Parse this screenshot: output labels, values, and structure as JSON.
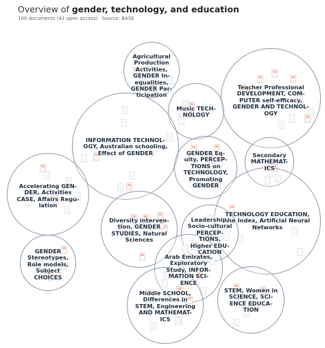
{
  "header": {
    "title_prefix": "Overview of ",
    "title_topic": "gender, technology, and education",
    "subtitle_docs": "100 documents (41 open access)",
    "subtitle_source": "Source: BASE"
  },
  "accent_colors": {
    "bubble_border": "#8a96a6",
    "label_text": "#1f2d3d",
    "open_access_marker": "#f5b8a4"
  },
  "clusters": [
    {
      "id": "agricultural",
      "label": "Agricultural\nProduction\nActivities,\nGENDER In-\nequalities,\nGENDER Par-\nticipation"
    },
    {
      "id": "teacher",
      "label": "Teacher Professional\nDEVELOPMENT, COM-\nPUTER self-efficacy,\nGENDER AND TECHNOL-\nOGY"
    },
    {
      "id": "music",
      "label": "Music TECH-\nNOLOGY"
    },
    {
      "id": "infotech",
      "label": "INFORMATION TECHNOL-\nOGY, Australian schooling,\nEffect of GENDER"
    },
    {
      "id": "gender-equity",
      "label": "GENDER Eq-\nuity, PERCEP-\nTIONS on\nTECHNOLOGY,\nPromoting\nGENDER"
    },
    {
      "id": "secondary",
      "label": "Secondary\nMATHEMAT-\nICS"
    },
    {
      "id": "accelerating",
      "label": "Accelerating GEN-\nDER, Activities\nCASE, Affairs Regu-\nlation"
    },
    {
      "id": "techedu",
      "label": "TECHNOLOGY EDUCATION,\nthe Index, Artificial Neural\nNetworks"
    },
    {
      "id": "diversity",
      "label": "Diversity interven-\ntion, GENDER\nSTUDIES, Natural\nSciences"
    },
    {
      "id": "leadership",
      "label": "Leadership,\nSocio-cultural\nPERCEP-\nTIONS,\nHigher EDU-\nCATION"
    },
    {
      "id": "stereotypes",
      "label": "GENDER\nStereotypes,\nRole models,\nSubject\nCHOICES"
    },
    {
      "id": "arab",
      "label": "Arab Emirates,\nExploratory\nStudy, INFOR-\nMATION SCI-\nENCE"
    },
    {
      "id": "middle-school",
      "label": "Middle SCHOOL,\nDifferences in\nSTEM, Engineering\nAND MATHEMAT-\nICS"
    },
    {
      "id": "stem-women",
      "label": "STEM, Women in\nSCIENCE, SCI-\nENCE EDUCA-\nTION"
    }
  ]
}
